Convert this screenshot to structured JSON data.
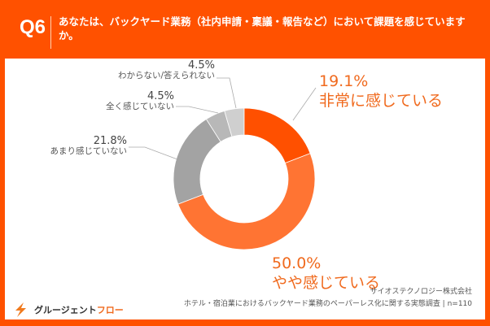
{
  "header": {
    "question_no": "Q6",
    "question": "あなたは、バックヤード業務（社内申請・稟議・報告など）において課題を感じていますか。"
  },
  "chart_data": {
    "type": "pie",
    "style": "donut",
    "title": "あなたは、バックヤード業務（社内申請・稟議・報告など）において課題を感じていますか。",
    "categories": [
      "非常に感じている",
      "やや感じている",
      "あまり感じていない",
      "全く感じていない",
      "わからない/答えられない"
    ],
    "values": [
      19.1,
      50.0,
      21.8,
      4.5,
      4.5
    ],
    "labels": [
      "19.1%",
      "50.0%",
      "21.8%",
      "4.5%",
      "4.5%"
    ],
    "colors": [
      "#ff5000",
      "#ff7433",
      "#a3a3a3",
      "#b8b8b8",
      "#cfcfcf"
    ],
    "start": "top",
    "direction": "clockwise"
  },
  "footer": {
    "logo_a": "グルージェント",
    "logo_b": "フロー",
    "company": "サイオステクノロジー株式会社",
    "survey": "ホテル・宿泊業におけるバックヤード業務のペーパーレス化に関する実態調査 | n=110"
  }
}
